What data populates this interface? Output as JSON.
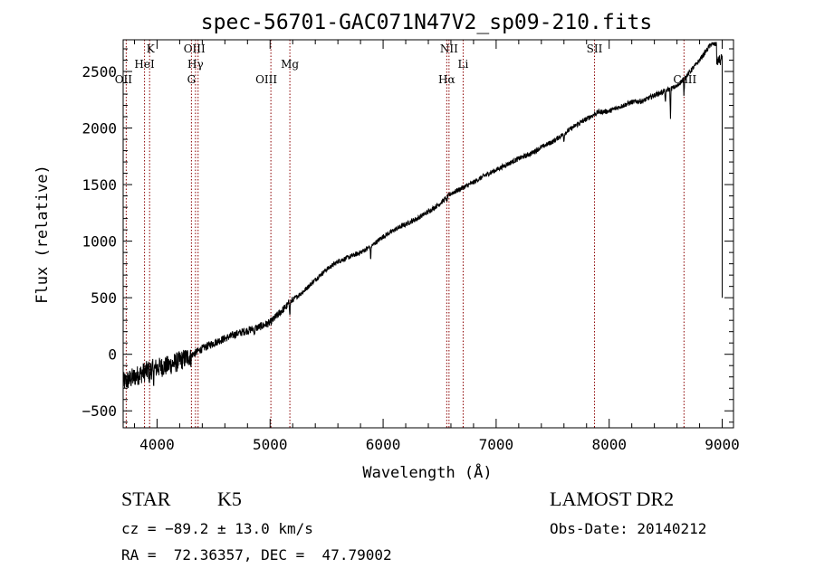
{
  "chart_data": {
    "type": "line",
    "title": "spec-56701-GAC071N47V2_sp09-210.fits",
    "xlabel": "Wavelength (Å)",
    "ylabel": "Flux (relative)",
    "xlim": [
      3700,
      9100
    ],
    "ylim": [
      -650,
      2780
    ],
    "x_ticks": [
      4000,
      5000,
      6000,
      7000,
      8000,
      9000
    ],
    "x_tick_labels": [
      "4000",
      "5000",
      "6000",
      "7000",
      "8000",
      "9000"
    ],
    "y_ticks": [
      -500,
      0,
      500,
      1000,
      1500,
      2000,
      2500
    ],
    "y_tick_labels": [
      "−500",
      "0",
      "500",
      "1000",
      "1500",
      "2000",
      "2500"
    ],
    "grid": false,
    "series": [
      {
        "x": [
          3700,
          3800,
          3900,
          4000,
          4100,
          4200,
          4300,
          4400,
          4500,
          4600,
          4700,
          4800,
          4900,
          5000,
          5100,
          5200,
          5300,
          5400,
          5500,
          5600,
          5700,
          5800,
          5900,
          6000,
          6100,
          6200,
          6300,
          6400,
          6500,
          6600,
          6700,
          6800,
          6900,
          7000,
          7100,
          7200,
          7300,
          7400,
          7500,
          7600,
          7700,
          7800,
          7900,
          8000,
          8100,
          8200,
          8300,
          8400,
          8500,
          8600,
          8700,
          8800,
          8900,
          9000
        ],
        "y": [
          -250,
          -200,
          -150,
          -120,
          -100,
          -60,
          -10,
          50,
          100,
          140,
          180,
          210,
          240,
          280,
          380,
          480,
          560,
          660,
          750,
          820,
          860,
          900,
          960,
          1040,
          1100,
          1150,
          1200,
          1260,
          1330,
          1420,
          1470,
          1520,
          1580,
          1630,
          1680,
          1730,
          1770,
          1830,
          1880,
          1950,
          2020,
          2080,
          2140,
          2150,
          2190,
          2230,
          2240,
          2290,
          2330,
          2370,
          2480,
          2600,
          2740,
          2740
        ]
      }
    ],
    "lines": [
      {
        "label": "OII",
        "wavelength": 3727
      },
      {
        "label": "K",
        "wavelength": 3934
      },
      {
        "label": "HeI",
        "wavelength": 3889
      },
      {
        "label": "OIII",
        "wavelength": 4363
      },
      {
        "label": "Hγ",
        "wavelength": 4340
      },
      {
        "label": "G",
        "wavelength": 4304
      },
      {
        "label": "OIII",
        "wavelength": 5007
      },
      {
        "label": "Mg",
        "wavelength": 5175
      },
      {
        "label": "NII",
        "wavelength": 6583
      },
      {
        "label": "Hα",
        "wavelength": 6563
      },
      {
        "label": "Li",
        "wavelength": 6708
      },
      {
        "label": "SII",
        "wavelength": 7870
      },
      {
        "label": "CaII",
        "wavelength": 8662
      }
    ],
    "line_color": "#8b0000"
  },
  "info": {
    "class": "STAR",
    "subclass": "K5",
    "cz": "cz = −89.2 ± 13.0 km/s",
    "radec": "RA =  72.36357, DEC =  47.79002",
    "survey": "LAMOST DR2",
    "obsdate": "Obs-Date: 20140212"
  }
}
